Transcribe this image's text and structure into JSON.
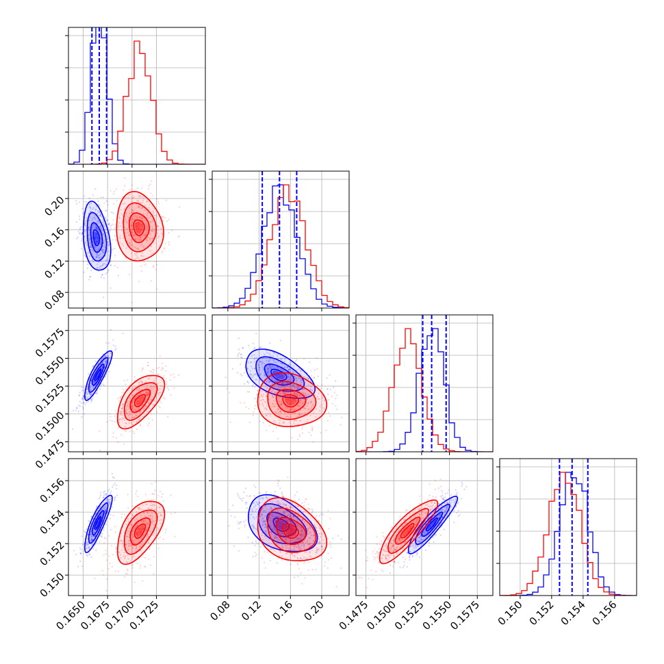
{
  "chart_data": {
    "type": "corner",
    "title": "",
    "grid": true,
    "series": [
      {
        "name": "",
        "color": "#0000ff"
      },
      {
        "name": "",
        "color": "#ff0000"
      }
    ],
    "parameters": [
      {
        "range": [
          0.1635,
          0.1775
        ],
        "ticks": [
          {
            "v": 0.165,
            "l": "0.1650"
          },
          {
            "v": 0.1675,
            "l": "0.1675"
          },
          {
            "v": 0.17,
            "l": "0.1700"
          },
          {
            "v": 0.1725,
            "l": "0.1725"
          }
        ]
      },
      {
        "range": [
          0.06,
          0.235
        ],
        "ticks": [
          {
            "v": 0.08,
            "l": "0.08"
          },
          {
            "v": 0.12,
            "l": "0.12"
          },
          {
            "v": 0.16,
            "l": "0.16"
          },
          {
            "v": 0.2,
            "l": "0.20"
          }
        ]
      },
      {
        "range": [
          0.1466,
          0.1589
        ],
        "ticks": [
          {
            "v": 0.1475,
            "l": "0.1475"
          },
          {
            "v": 0.15,
            "l": "0.1500"
          },
          {
            "v": 0.1525,
            "l": "0.1525"
          },
          {
            "v": 0.155,
            "l": "0.1550"
          },
          {
            "v": 0.1575,
            "l": "0.1575"
          }
        ]
      },
      {
        "range": [
          0.1487,
          0.1574
        ],
        "ticks": [
          {
            "v": 0.15,
            "l": "0.150"
          },
          {
            "v": 0.152,
            "l": "0.152"
          },
          {
            "v": 0.154,
            "l": "0.154"
          },
          {
            "v": 0.156,
            "l": "0.156"
          }
        ]
      }
    ],
    "marginals": [
      {
        "blue": {
          "center": 0.16665,
          "sd": 0.0008
        },
        "red": {
          "center": 0.17075,
          "sd": 0.0012
        },
        "quantiles_blue": [
          0.1659,
          0.16665,
          0.1674
        ]
      },
      {
        "blue": {
          "center": 0.147,
          "sd": 0.022
        },
        "red": {
          "center": 0.158,
          "sd": 0.022
        },
        "quantiles_blue": [
          0.124,
          0.146,
          0.168
        ]
      },
      {
        "blue": {
          "center": 0.1534,
          "sd": 0.0011
        },
        "red": {
          "center": 0.1512,
          "sd": 0.0013
        },
        "quantiles_blue": [
          0.1526,
          0.1534,
          0.1547
        ]
      },
      {
        "blue": {
          "center": 0.1534,
          "sd": 0.0009
        },
        "red": {
          "center": 0.1528,
          "sd": 0.001
        },
        "quantiles_blue": [
          0.1525,
          0.1533,
          0.1543
        ]
      }
    ],
    "pairs": [
      {
        "row": 1,
        "col": 0,
        "blue": {
          "mean": [
            0.16635,
            0.15
          ],
          "sd": [
            0.0007,
            0.022
          ],
          "rho": -0.3
        },
        "red": {
          "mean": [
            0.1707,
            0.163
          ],
          "sd": [
            0.0012,
            0.022
          ],
          "rho": -0.1
        }
      },
      {
        "row": 2,
        "col": 0,
        "blue": {
          "mean": [
            0.1665,
            0.1535
          ],
          "sd": [
            0.0007,
            0.0011
          ],
          "rho": 0.85
        },
        "red": {
          "mean": [
            0.1708,
            0.1512
          ],
          "sd": [
            0.0012,
            0.0012
          ],
          "rho": 0.6
        }
      },
      {
        "row": 2,
        "col": 1,
        "blue": {
          "mean": [
            0.145,
            0.1535
          ],
          "sd": [
            0.022,
            0.0011
          ],
          "rho": -0.5
        },
        "red": {
          "mean": [
            0.16,
            0.1512
          ],
          "sd": [
            0.022,
            0.0012
          ],
          "rho": -0.1
        }
      },
      {
        "row": 3,
        "col": 0,
        "blue": {
          "mean": [
            0.1665,
            0.1533
          ],
          "sd": [
            0.0007,
            0.0009
          ],
          "rho": 0.85
        },
        "red": {
          "mean": [
            0.1708,
            0.1528
          ],
          "sd": [
            0.0012,
            0.001
          ],
          "rho": 0.55
        }
      },
      {
        "row": 3,
        "col": 1,
        "blue": {
          "mean": [
            0.148,
            0.1532
          ],
          "sd": [
            0.022,
            0.0009
          ],
          "rho": -0.4
        },
        "red": {
          "mean": [
            0.16,
            0.1528
          ],
          "sd": [
            0.022,
            0.001
          ],
          "rho": -0.3
        }
      },
      {
        "row": 3,
        "col": 2,
        "blue": {
          "mean": [
            0.1534,
            0.1532
          ],
          "sd": [
            0.0011,
            0.0009
          ],
          "rho": 0.9
        },
        "red": {
          "mean": [
            0.1512,
            0.1528
          ],
          "sd": [
            0.0013,
            0.001
          ],
          "rho": 0.85
        }
      }
    ]
  }
}
